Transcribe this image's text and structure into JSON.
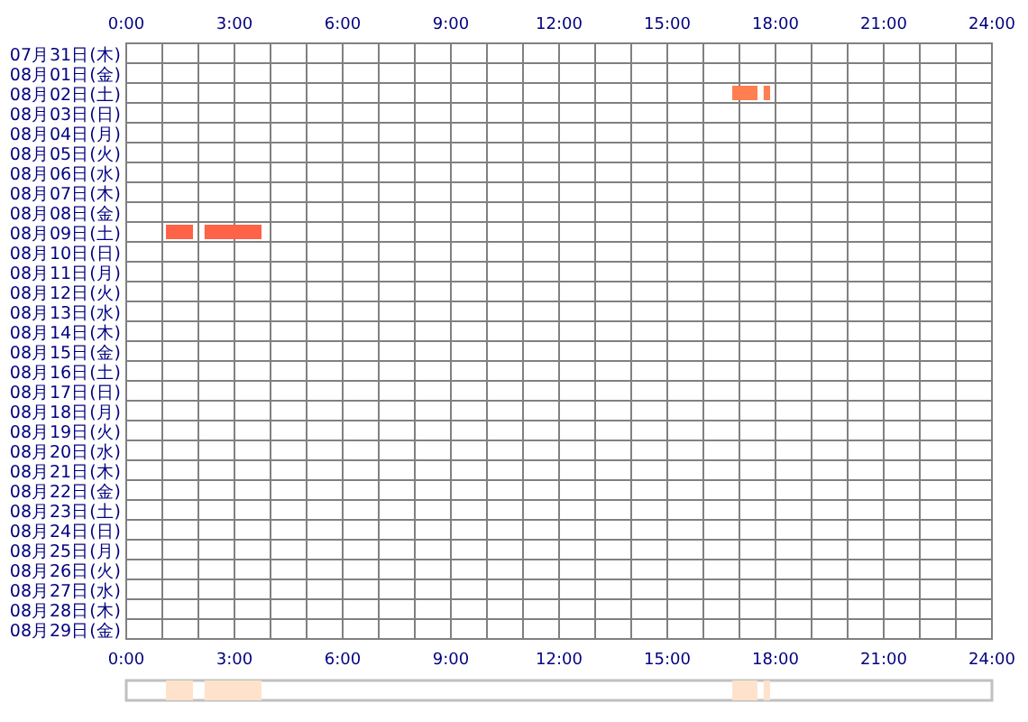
{
  "chart_data": [
    {
      "type": "bar",
      "orientation": "horizontal",
      "grid": true,
      "categories": [
        "07月31日(木)",
        "08月01日(金)",
        "08月02日(土)",
        "08月03日(日)",
        "08月04日(月)",
        "08月05日(火)",
        "08月06日(水)",
        "08月07日(木)",
        "08月08日(金)",
        "08月09日(土)",
        "08月10日(日)",
        "08月11日(月)",
        "08月12日(火)",
        "08月13日(水)",
        "08月14日(木)",
        "08月15日(金)",
        "08月16日(土)",
        "08月17日(日)",
        "08月18日(月)",
        "08月19日(火)",
        "08月20日(水)",
        "08月21日(木)",
        "08月22日(金)",
        "08月23日(土)",
        "08月24日(日)",
        "08月25日(月)",
        "08月26日(火)",
        "08月27日(水)",
        "08月28日(木)",
        "08月29日(金)"
      ],
      "series": [
        {
          "colors": [
            null,
            null,
            "#ff7f50",
            null,
            null,
            null,
            null,
            null,
            null,
            "#ff6347",
            null,
            null,
            null,
            null,
            null,
            null,
            null,
            null,
            null,
            null,
            null,
            null,
            null,
            null,
            null,
            null,
            null,
            null,
            null,
            null
          ],
          "base": [
            null,
            null,
            16.8,
            null,
            null,
            null,
            null,
            null,
            null,
            1.1,
            null,
            null,
            null,
            null,
            null,
            null,
            null,
            null,
            null,
            null,
            null,
            null,
            null,
            null,
            null,
            null,
            null,
            null,
            null,
            null
          ],
          "values": [
            null,
            null,
            0.7,
            null,
            null,
            null,
            null,
            null,
            null,
            0.75,
            null,
            null,
            null,
            null,
            null,
            null,
            null,
            null,
            null,
            null,
            null,
            null,
            null,
            null,
            null,
            null,
            null,
            null,
            null,
            null
          ]
        },
        {
          "colors": [
            null,
            null,
            "#ff7f50",
            null,
            null,
            null,
            null,
            null,
            null,
            "#ff6347",
            null,
            null,
            null,
            null,
            null,
            null,
            null,
            null,
            null,
            null,
            null,
            null,
            null,
            null,
            null,
            null,
            null,
            null,
            null,
            null
          ],
          "base": [
            null,
            null,
            17.67,
            null,
            null,
            null,
            null,
            null,
            null,
            2.17,
            null,
            null,
            null,
            null,
            null,
            null,
            null,
            null,
            null,
            null,
            null,
            null,
            null,
            null,
            null,
            null,
            null,
            null,
            null,
            null
          ],
          "values": [
            null,
            null,
            0.18,
            null,
            null,
            null,
            null,
            null,
            null,
            1.58,
            null,
            null,
            null,
            null,
            null,
            null,
            null,
            null,
            null,
            null,
            null,
            null,
            null,
            null,
            null,
            null,
            null,
            null,
            null,
            null
          ]
        }
      ],
      "xlim": [
        0,
        24
      ],
      "xticks": [
        {
          "value": 0,
          "label": "0:00"
        },
        {
          "value": 1,
          "label": null
        },
        {
          "value": 2,
          "label": null
        },
        {
          "value": 3,
          "label": "3:00"
        },
        {
          "value": 4,
          "label": null
        },
        {
          "value": 5,
          "label": null
        },
        {
          "value": 6,
          "label": "6:00"
        },
        {
          "value": 7,
          "label": null
        },
        {
          "value": 8,
          "label": null
        },
        {
          "value": 9,
          "label": "9:00"
        },
        {
          "value": 10,
          "label": null
        },
        {
          "value": 11,
          "label": null
        },
        {
          "value": 12,
          "label": "12:00"
        },
        {
          "value": 13,
          "label": null
        },
        {
          "value": 14,
          "label": null
        },
        {
          "value": 15,
          "label": "15:00"
        },
        {
          "value": 16,
          "label": null
        },
        {
          "value": 17,
          "label": null
        },
        {
          "value": 18,
          "label": "18:00"
        },
        {
          "value": 19,
          "label": null
        },
        {
          "value": 20,
          "label": null
        },
        {
          "value": 21,
          "label": "21:00"
        },
        {
          "value": 22,
          "label": null
        },
        {
          "value": 23,
          "label": null
        },
        {
          "value": 24,
          "label": "24:00"
        }
      ],
      "x2lim": [
        0,
        24
      ],
      "x2ticks": [
        {
          "value": 0,
          "label": "0:00"
        },
        {
          "value": 3,
          "label": "3:00"
        },
        {
          "value": 6,
          "label": "6:00"
        },
        {
          "value": 9,
          "label": "9:00"
        },
        {
          "value": 12,
          "label": "12:00"
        },
        {
          "value": 15,
          "label": "15:00"
        },
        {
          "value": 18,
          "label": "18:00"
        },
        {
          "value": 21,
          "label": "21:00"
        },
        {
          "value": 24,
          "label": "24:00"
        }
      ]
    },
    {
      "type": "bar",
      "orientation": "horizontal",
      "xlim": [
        0,
        24
      ],
      "categories": [
        null
      ],
      "series": [
        {
          "color": "#ffe2cc",
          "base": [
            1.1
          ],
          "values": [
            0.75
          ]
        },
        {
          "color": "#ffe2cc",
          "base": [
            2.17
          ],
          "values": [
            1.58
          ]
        },
        {
          "color": "#ffe2cc",
          "base": [
            16.8
          ],
          "values": [
            0.7
          ]
        },
        {
          "color": "#ffe2cc",
          "base": [
            17.67
          ],
          "values": [
            0.18
          ]
        }
      ]
    }
  ]
}
